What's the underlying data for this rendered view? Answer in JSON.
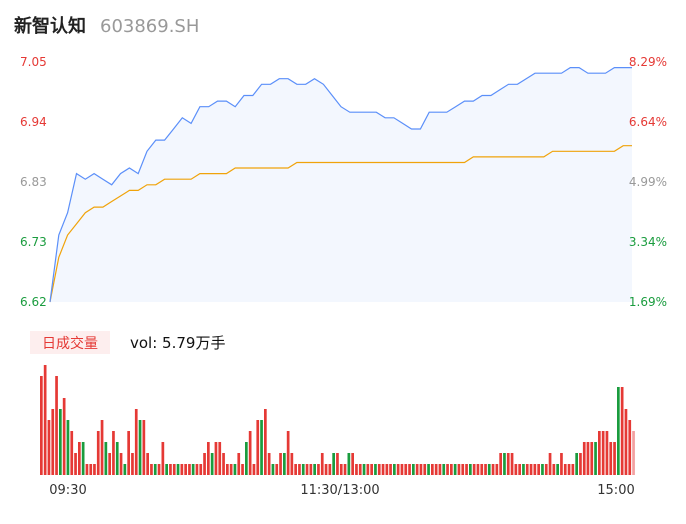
{
  "header": {
    "name": "新智认知",
    "code": "603869.SH"
  },
  "volume_panel": {
    "badge_label": "日成交量",
    "vol_label": "vol: 5.79万手"
  },
  "colors": {
    "price": "#5b8ff9",
    "avg": "#f0a30a",
    "up": "#e53935",
    "down": "#1a9c3e",
    "neutral": "#999999",
    "grid": "#eeeeee"
  },
  "chart_data": [
    {
      "type": "line",
      "title": "",
      "ylim": [
        6.62,
        7.05
      ],
      "y_ticks": [
        "7.05",
        "6.94",
        "6.83",
        "6.73",
        "6.62"
      ],
      "pct_ticks": [
        "8.29%",
        "6.64%",
        "4.99%",
        "3.34%",
        "1.69%"
      ],
      "x_ticks": [
        "09:30",
        "11:30/13:00",
        "15:00"
      ],
      "series": [
        {
          "role": "price",
          "values": [
            6.62,
            6.74,
            6.78,
            6.85,
            6.84,
            6.85,
            6.84,
            6.83,
            6.85,
            6.86,
            6.85,
            6.89,
            6.91,
            6.91,
            6.93,
            6.95,
            6.94,
            6.97,
            6.97,
            6.98,
            6.98,
            6.97,
            6.99,
            6.99,
            7.01,
            7.01,
            7.02,
            7.02,
            7.01,
            7.01,
            7.02,
            7.01,
            6.99,
            6.97,
            6.96,
            6.96,
            6.96,
            6.96,
            6.95,
            6.95,
            6.94,
            6.93,
            6.93,
            6.96,
            6.96,
            6.96,
            6.97,
            6.98,
            6.98,
            6.99,
            6.99,
            7.0,
            7.01,
            7.01,
            7.02,
            7.03,
            7.03,
            7.03,
            7.03,
            7.04,
            7.04,
            7.03,
            7.03,
            7.03,
            7.04,
            7.04,
            7.04
          ]
        },
        {
          "role": "average",
          "values": [
            6.62,
            6.7,
            6.74,
            6.76,
            6.78,
            6.79,
            6.79,
            6.8,
            6.81,
            6.82,
            6.82,
            6.83,
            6.83,
            6.84,
            6.84,
            6.84,
            6.84,
            6.85,
            6.85,
            6.85,
            6.85,
            6.86,
            6.86,
            6.86,
            6.86,
            6.86,
            6.86,
            6.86,
            6.87,
            6.87,
            6.87,
            6.87,
            6.87,
            6.87,
            6.87,
            6.87,
            6.87,
            6.87,
            6.87,
            6.87,
            6.87,
            6.87,
            6.87,
            6.87,
            6.87,
            6.87,
            6.87,
            6.87,
            6.88,
            6.88,
            6.88,
            6.88,
            6.88,
            6.88,
            6.88,
            6.88,
            6.88,
            6.89,
            6.89,
            6.89,
            6.89,
            6.89,
            6.89,
            6.89,
            6.89,
            6.9,
            6.9
          ]
        }
      ]
    },
    {
      "type": "bar",
      "title": "",
      "values": [
        9,
        10,
        5,
        6,
        9,
        6,
        7,
        5,
        4,
        2,
        3,
        3,
        1,
        1,
        1,
        4,
        5,
        3,
        2,
        4,
        3,
        2,
        1,
        4,
        2,
        6,
        5,
        5,
        2,
        1,
        1,
        1,
        3,
        1,
        1,
        1,
        1,
        1,
        1,
        1,
        1,
        1,
        1,
        2,
        3,
        2,
        3,
        3,
        2,
        1,
        1,
        1,
        2,
        1,
        3,
        4,
        1,
        5,
        5,
        6,
        2,
        1,
        1,
        2,
        2,
        4,
        2,
        1,
        1,
        1,
        1,
        1,
        1,
        1,
        2,
        1,
        1,
        2,
        2,
        1,
        1,
        2,
        2,
        1,
        1,
        1,
        1,
        1,
        1,
        1,
        1,
        1,
        1,
        1,
        1,
        1,
        1,
        1,
        1,
        1,
        1,
        1,
        1,
        1,
        1,
        1,
        1,
        1,
        1,
        1,
        1,
        1,
        1,
        1,
        1,
        1,
        1,
        1,
        1,
        1,
        1,
        2,
        2,
        2,
        2,
        1,
        1,
        1,
        1,
        1,
        1,
        1,
        1,
        1,
        2,
        1,
        1,
        2,
        1,
        1,
        1,
        2,
        2,
        3,
        3,
        3,
        3,
        4,
        4,
        4,
        3,
        3,
        8,
        8,
        6,
        5,
        4
      ],
      "colors": [
        "r",
        "r",
        "r",
        "r",
        "r",
        "g",
        "r",
        "g",
        "r",
        "r",
        "r",
        "g",
        "r",
        "r",
        "r",
        "r",
        "r",
        "g",
        "r",
        "r",
        "g",
        "r",
        "g",
        "r",
        "r",
        "r",
        "g",
        "r",
        "r",
        "r",
        "g",
        "r",
        "r",
        "g",
        "r",
        "r",
        "g",
        "r",
        "r",
        "r",
        "g",
        "r",
        "r",
        "r",
        "r",
        "g",
        "r",
        "r",
        "r",
        "r",
        "r",
        "g",
        "r",
        "r",
        "g",
        "r",
        "r",
        "r",
        "g",
        "r",
        "r",
        "g",
        "r",
        "r",
        "g",
        "r",
        "r",
        "r",
        "r",
        "g",
        "r",
        "r",
        "g",
        "r",
        "r",
        "r",
        "r",
        "g",
        "r",
        "r",
        "r",
        "g",
        "r",
        "r",
        "r",
        "g",
        "r",
        "r",
        "g",
        "r",
        "r",
        "r",
        "r",
        "g",
        "r",
        "r",
        "r",
        "r",
        "g",
        "r",
        "r",
        "r",
        "g",
        "r",
        "r",
        "r",
        "g",
        "r",
        "r",
        "g",
        "r",
        "r",
        "r",
        "g",
        "r",
        "r",
        "r",
        "r",
        "g",
        "r",
        "r",
        "r",
        "g",
        "r",
        "r",
        "r",
        "r",
        "g",
        "r",
        "r",
        "r",
        "r",
        "g",
        "r",
        "r",
        "r",
        "g",
        "r",
        "r",
        "r",
        "r",
        "g",
        "r",
        "r",
        "r",
        "r",
        "g",
        "r",
        "r",
        "r",
        "r",
        "r",
        "g",
        "r",
        "r",
        "r",
        "n"
      ]
    }
  ]
}
